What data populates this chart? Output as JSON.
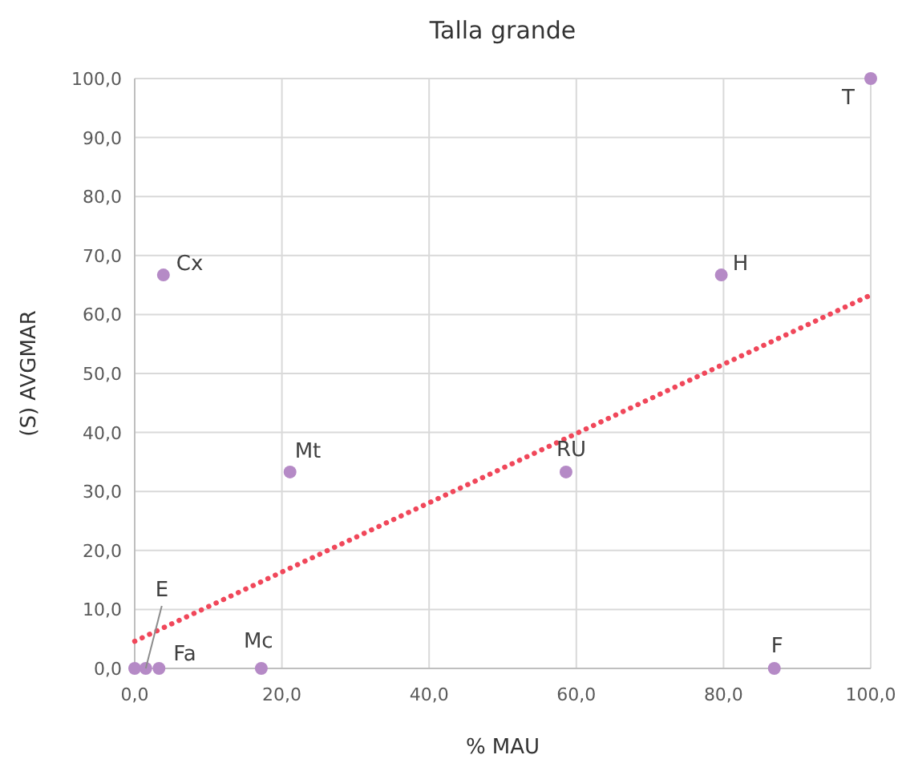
{
  "chart_data": {
    "type": "scatter",
    "title": "Talla grande",
    "xlabel": "% MAU",
    "ylabel": "(S) AVGMAR",
    "xlim": [
      0,
      100
    ],
    "ylim": [
      0,
      100
    ],
    "xticks": [
      {
        "value": 0,
        "label": "0,0"
      },
      {
        "value": 20,
        "label": "20,0"
      },
      {
        "value": 40,
        "label": "40,0"
      },
      {
        "value": 60,
        "label": "60,0"
      },
      {
        "value": 80,
        "label": "80,0"
      },
      {
        "value": 100,
        "label": "100,0"
      }
    ],
    "yticks": [
      {
        "value": 0,
        "label": "0,0"
      },
      {
        "value": 10,
        "label": "10,0"
      },
      {
        "value": 20,
        "label": "20,0"
      },
      {
        "value": 30,
        "label": "30,0"
      },
      {
        "value": 40,
        "label": "40,0"
      },
      {
        "value": 50,
        "label": "50,0"
      },
      {
        "value": 60,
        "label": "60,0"
      },
      {
        "value": 70,
        "label": "70,0"
      },
      {
        "value": 80,
        "label": "80,0"
      },
      {
        "value": 90,
        "label": "90,0"
      },
      {
        "value": 100,
        "label": "100,0"
      }
    ],
    "grid": true,
    "series": [
      {
        "marker": "circle",
        "color": "#b58ac6",
        "x": [
          0,
          1.5,
          3.3,
          17.2,
          21.1,
          58.6,
          3.9,
          79.7,
          86.9,
          100
        ],
        "values": [
          0,
          0,
          0,
          0,
          33.3,
          33.3,
          66.7,
          66.7,
          0,
          100
        ]
      },
      {
        "type": "line",
        "marker": "none",
        "color": "#f0475a",
        "line_style": "dotted",
        "x": [
          0,
          100
        ],
        "values": [
          4.6,
          63.3
        ]
      }
    ],
    "annotations": [
      {
        "text": "E",
        "x": 1.5,
        "y": 0
      },
      {
        "text": "Fa",
        "x": 3.3,
        "y": 0
      },
      {
        "text": "Mc",
        "x": 17.2,
        "y": 0
      },
      {
        "text": "Mt",
        "x": 21.1,
        "y": 33.3
      },
      {
        "text": "Cx",
        "x": 3.9,
        "y": 66.7
      },
      {
        "text": "RU",
        "x": 58.6,
        "y": 33.3
      },
      {
        "text": "H",
        "x": 79.7,
        "y": 66.7
      },
      {
        "text": "F",
        "x": 86.9,
        "y": 0
      },
      {
        "text": "T",
        "x": 100,
        "y": 100
      }
    ]
  }
}
